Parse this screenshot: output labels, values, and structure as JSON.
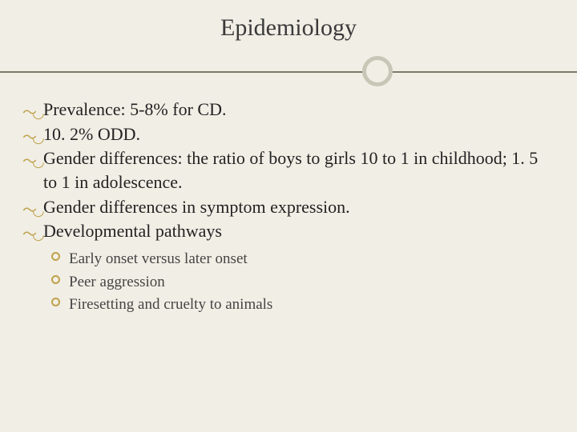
{
  "title": "Epidemiology",
  "accent_color": "#bfa24b",
  "background_color": "#f1eee5",
  "divider_color": "#7a7a6a",
  "circle_border_color": "#c9c6b8",
  "title_fontsize": 30,
  "body_fontsize": 22,
  "sub_fontsize": 19,
  "bullets": {
    "b0": "Prevalence:  5-8% for CD.",
    "b1": "10. 2% ODD.",
    "b2": "Gender differences:  the ratio of boys to girls 10 to 1 in childhood; 1. 5 to 1 in adolescence.",
    "b3": "Gender differences in symptom expression.",
    "b4": "Developmental pathways"
  },
  "sub_bullets": {
    "s0": "Early onset versus later onset",
    "s1": "Peer aggression",
    "s2": "Firesetting and cruelty to animals"
  }
}
